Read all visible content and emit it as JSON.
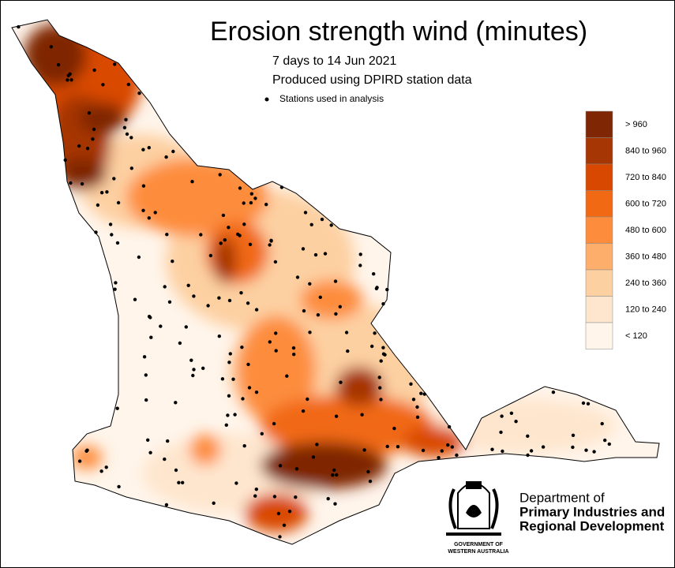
{
  "title": "Erosion strength wind (minutes)",
  "subtitle": [
    "7 days to 14 Jun 2021",
    "Produced using DPIRD station data"
  ],
  "stations_label": "Stations used in analysis",
  "legend": [
    {
      "label": "> 960",
      "color": "#7f2704"
    },
    {
      "label": "840 to 960",
      "color": "#a63603"
    },
    {
      "label": "720 to 840",
      "color": "#d94801"
    },
    {
      "label": "600 to 720",
      "color": "#f16913"
    },
    {
      "label": "480 to 600",
      "color": "#fd8d3c"
    },
    {
      "label": "360 to 480",
      "color": "#fdae6b"
    },
    {
      "label": "240 to 360",
      "color": "#fdd0a2"
    },
    {
      "label": "120 to 240",
      "color": "#fee6ce"
    },
    {
      "label": "< 120",
      "color": "#fff5eb"
    }
  ],
  "department": [
    "Department of",
    "Primary Industries and",
    "Regional Development"
  ],
  "government": [
    "GOVERNMENT OF",
    "WESTERN AUSTRALIA"
  ]
}
